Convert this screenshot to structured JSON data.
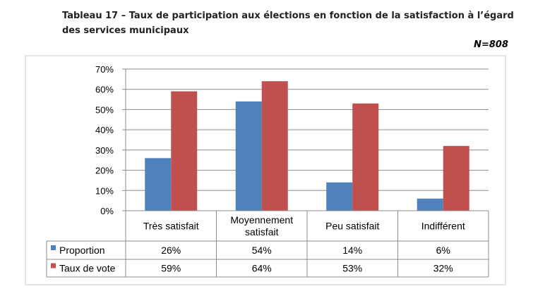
{
  "header": {
    "title": "Tableau 17 – Taux de participation aux élections en fonction de la satisfaction à l’égard des services municipaux",
    "sample": "N=808"
  },
  "chart_data": {
    "type": "bar",
    "categories": [
      [
        "Très satisfait"
      ],
      [
        "Moyennement",
        "satisfait"
      ],
      [
        "Peu satisfait"
      ],
      [
        "Indifférent"
      ]
    ],
    "series": [
      {
        "name": "Proportion",
        "color": "#4F81BD",
        "values": [
          26,
          54,
          14,
          6
        ],
        "labels": [
          "26%",
          "54%",
          "14%",
          "6%"
        ]
      },
      {
        "name": "Taux de vote",
        "color": "#C0504D",
        "values": [
          59,
          64,
          53,
          32
        ],
        "labels": [
          "59%",
          "64%",
          "53%",
          "32%"
        ]
      }
    ],
    "ylim": [
      0,
      70
    ],
    "yticks": [
      "0%",
      "10%",
      "20%",
      "30%",
      "40%",
      "50%",
      "60%",
      "70%"
    ],
    "grid": true,
    "legend": "data-table-left"
  }
}
